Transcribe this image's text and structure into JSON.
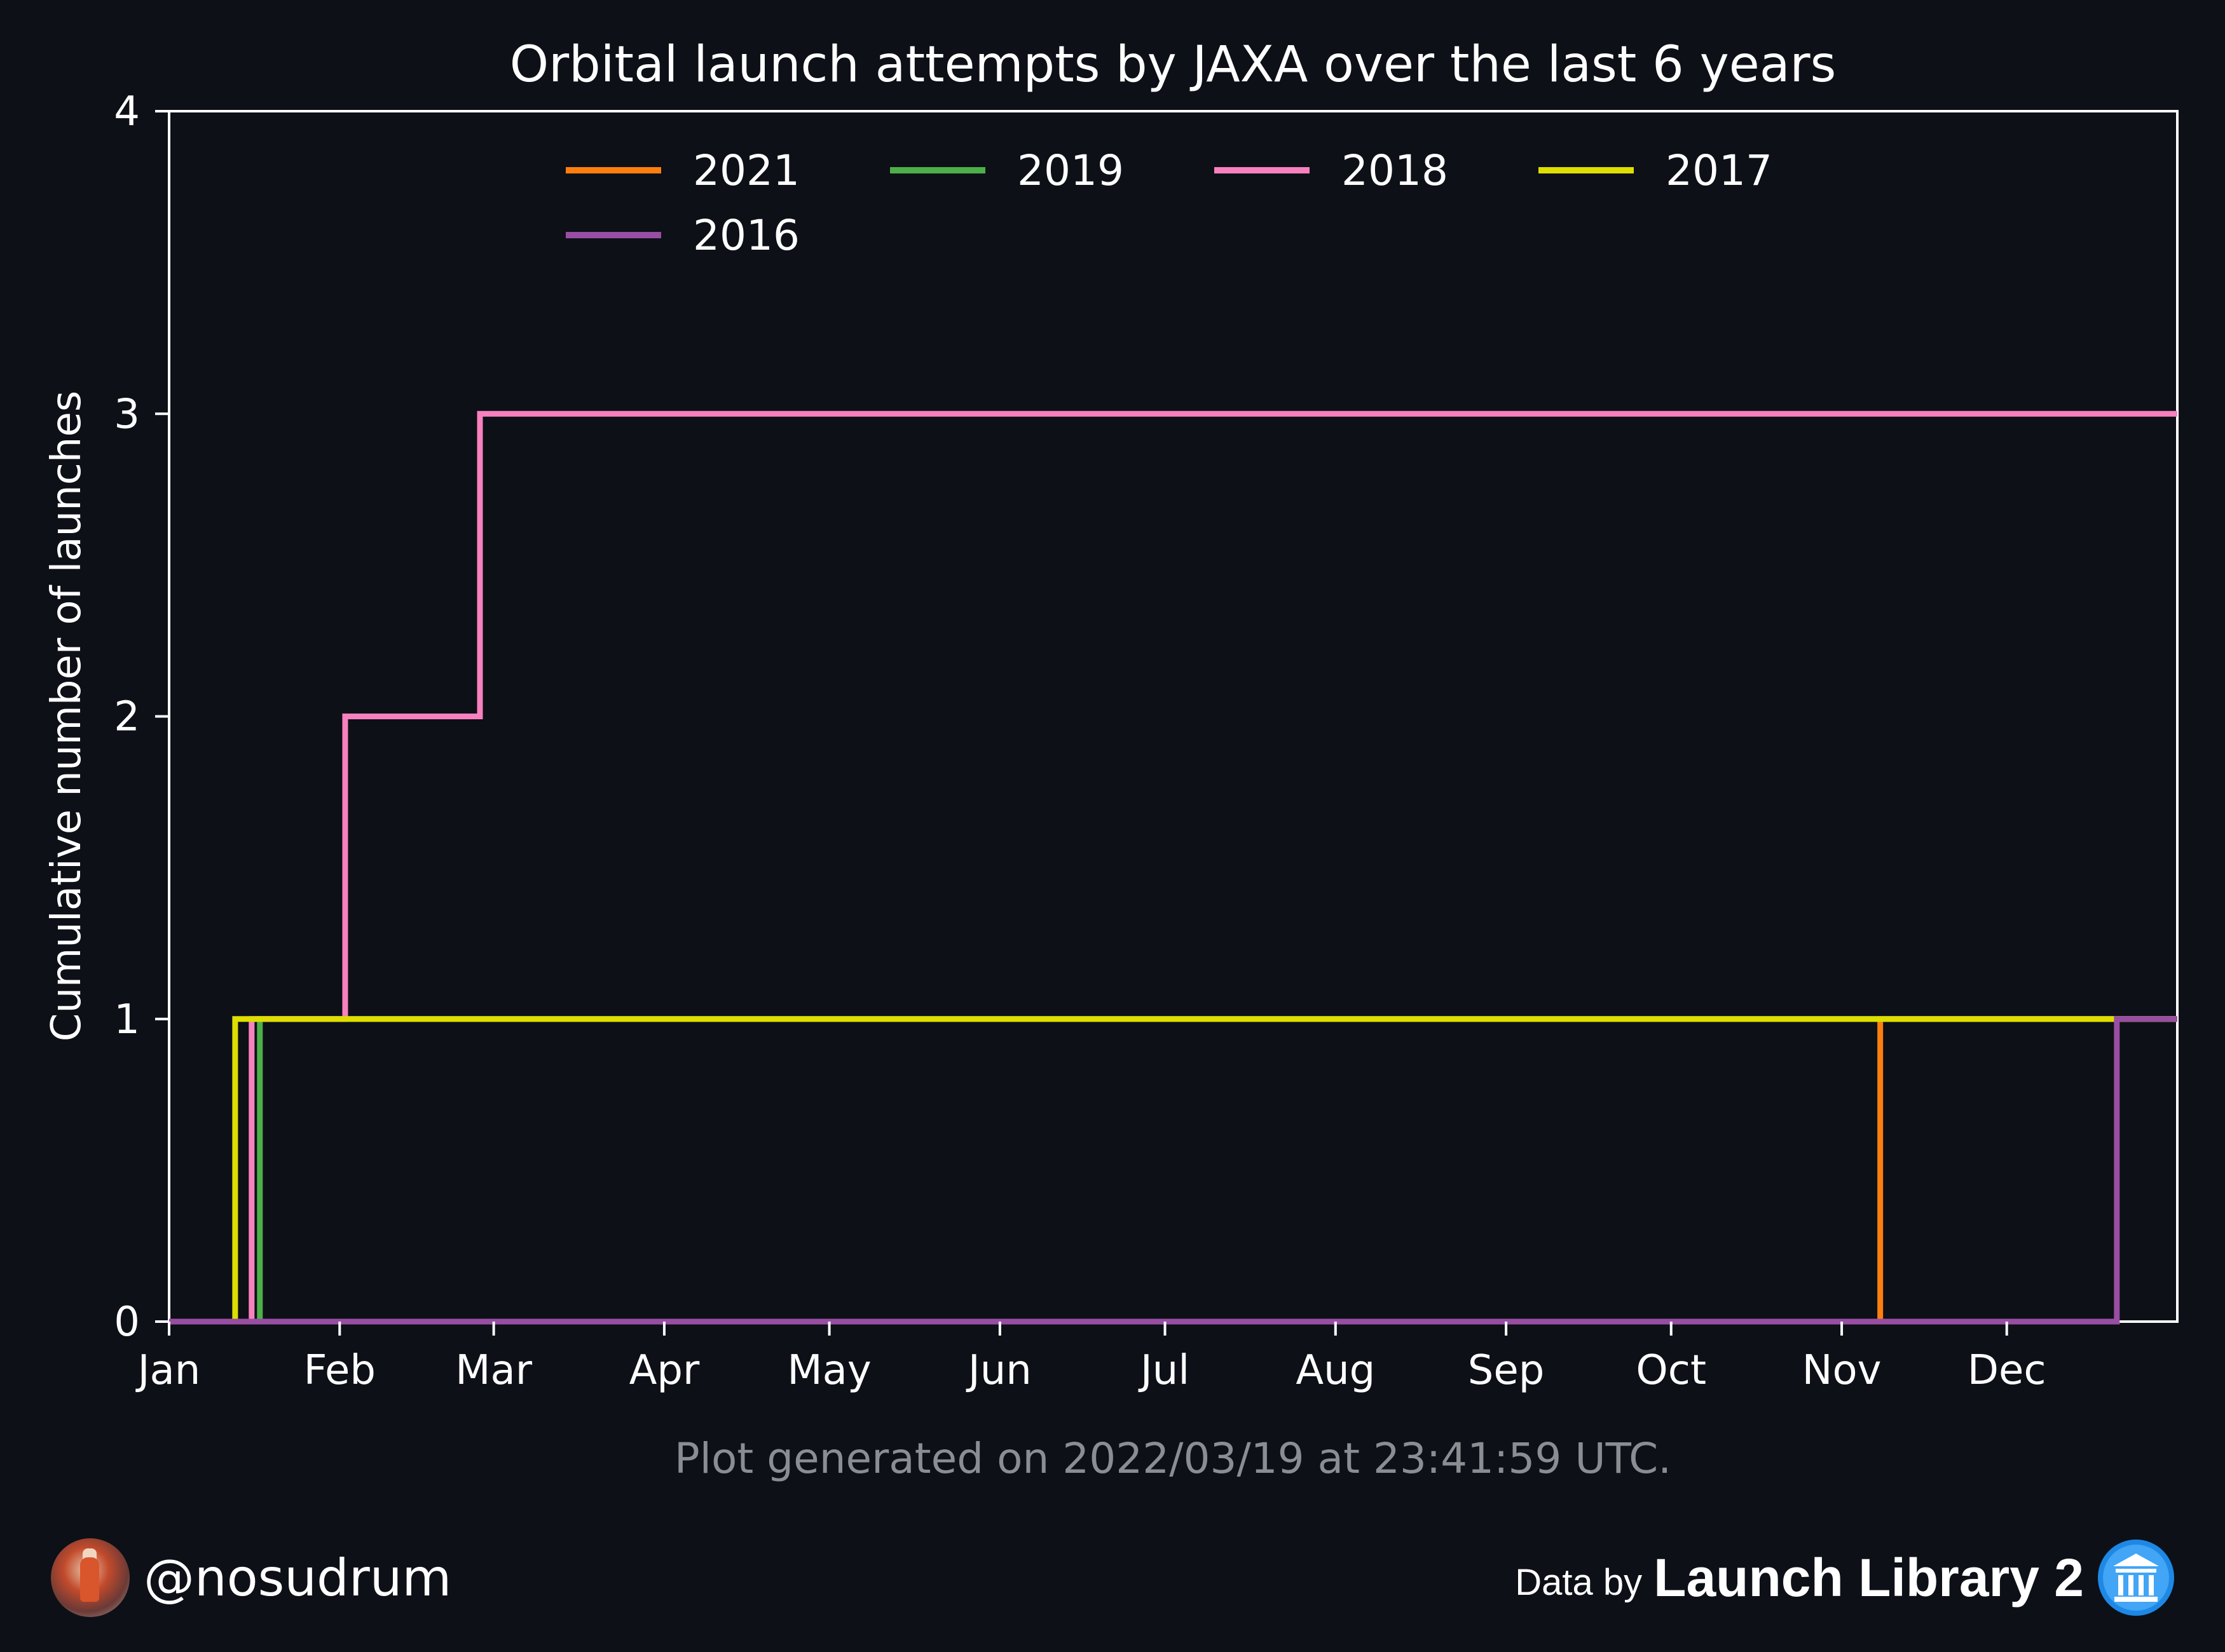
{
  "chart_data": {
    "type": "line",
    "step": "post",
    "title": "Orbital launch attempts by JAXA over the last 6 years",
    "xlabel": "",
    "ylabel": "Cumulative number of launches",
    "xlim": [
      0,
      365
    ],
    "ylim": [
      0,
      4
    ],
    "x_ticks": [
      {
        "label": "Jan",
        "day": 0
      },
      {
        "label": "Feb",
        "day": 31
      },
      {
        "label": "Mar",
        "day": 59
      },
      {
        "label": "Apr",
        "day": 90
      },
      {
        "label": "May",
        "day": 120
      },
      {
        "label": "Jun",
        "day": 151
      },
      {
        "label": "Jul",
        "day": 181
      },
      {
        "label": "Aug",
        "day": 212
      },
      {
        "label": "Sep",
        "day": 243
      },
      {
        "label": "Oct",
        "day": 273
      },
      {
        "label": "Nov",
        "day": 304
      },
      {
        "label": "Dec",
        "day": 334
      }
    ],
    "y_ticks": [
      "0",
      "1",
      "2",
      "3",
      "4"
    ],
    "grid": false,
    "legend": {
      "position": "top-center",
      "columns": 4
    },
    "series": [
      {
        "name": "2021",
        "color": "#ff7f0e",
        "x": [
          0,
          311,
          365
        ],
        "y": [
          0,
          1,
          1
        ]
      },
      {
        "name": "2019",
        "color": "#4daf4a",
        "x": [
          0,
          16.5,
          365
        ],
        "y": [
          0,
          1,
          1
        ]
      },
      {
        "name": "2018",
        "color": "#f781bf",
        "x": [
          0,
          15,
          32,
          56.5,
          365
        ],
        "y": [
          0,
          1,
          2,
          3,
          3
        ]
      },
      {
        "name": "2017",
        "color": "#dede00",
        "x": [
          0,
          12,
          365
        ],
        "y": [
          0,
          1,
          1
        ]
      },
      {
        "name": "2016",
        "color": "#984ea3",
        "x": [
          0,
          354,
          365
        ],
        "y": [
          0,
          1,
          1
        ]
      }
    ]
  },
  "footnote": "Plot generated on 2022/03/19 at 23:41:59 UTC.",
  "credit": {
    "handle": "@nosudrum"
  },
  "source": {
    "prefix": "Data by",
    "name": "Launch Library 2"
  }
}
